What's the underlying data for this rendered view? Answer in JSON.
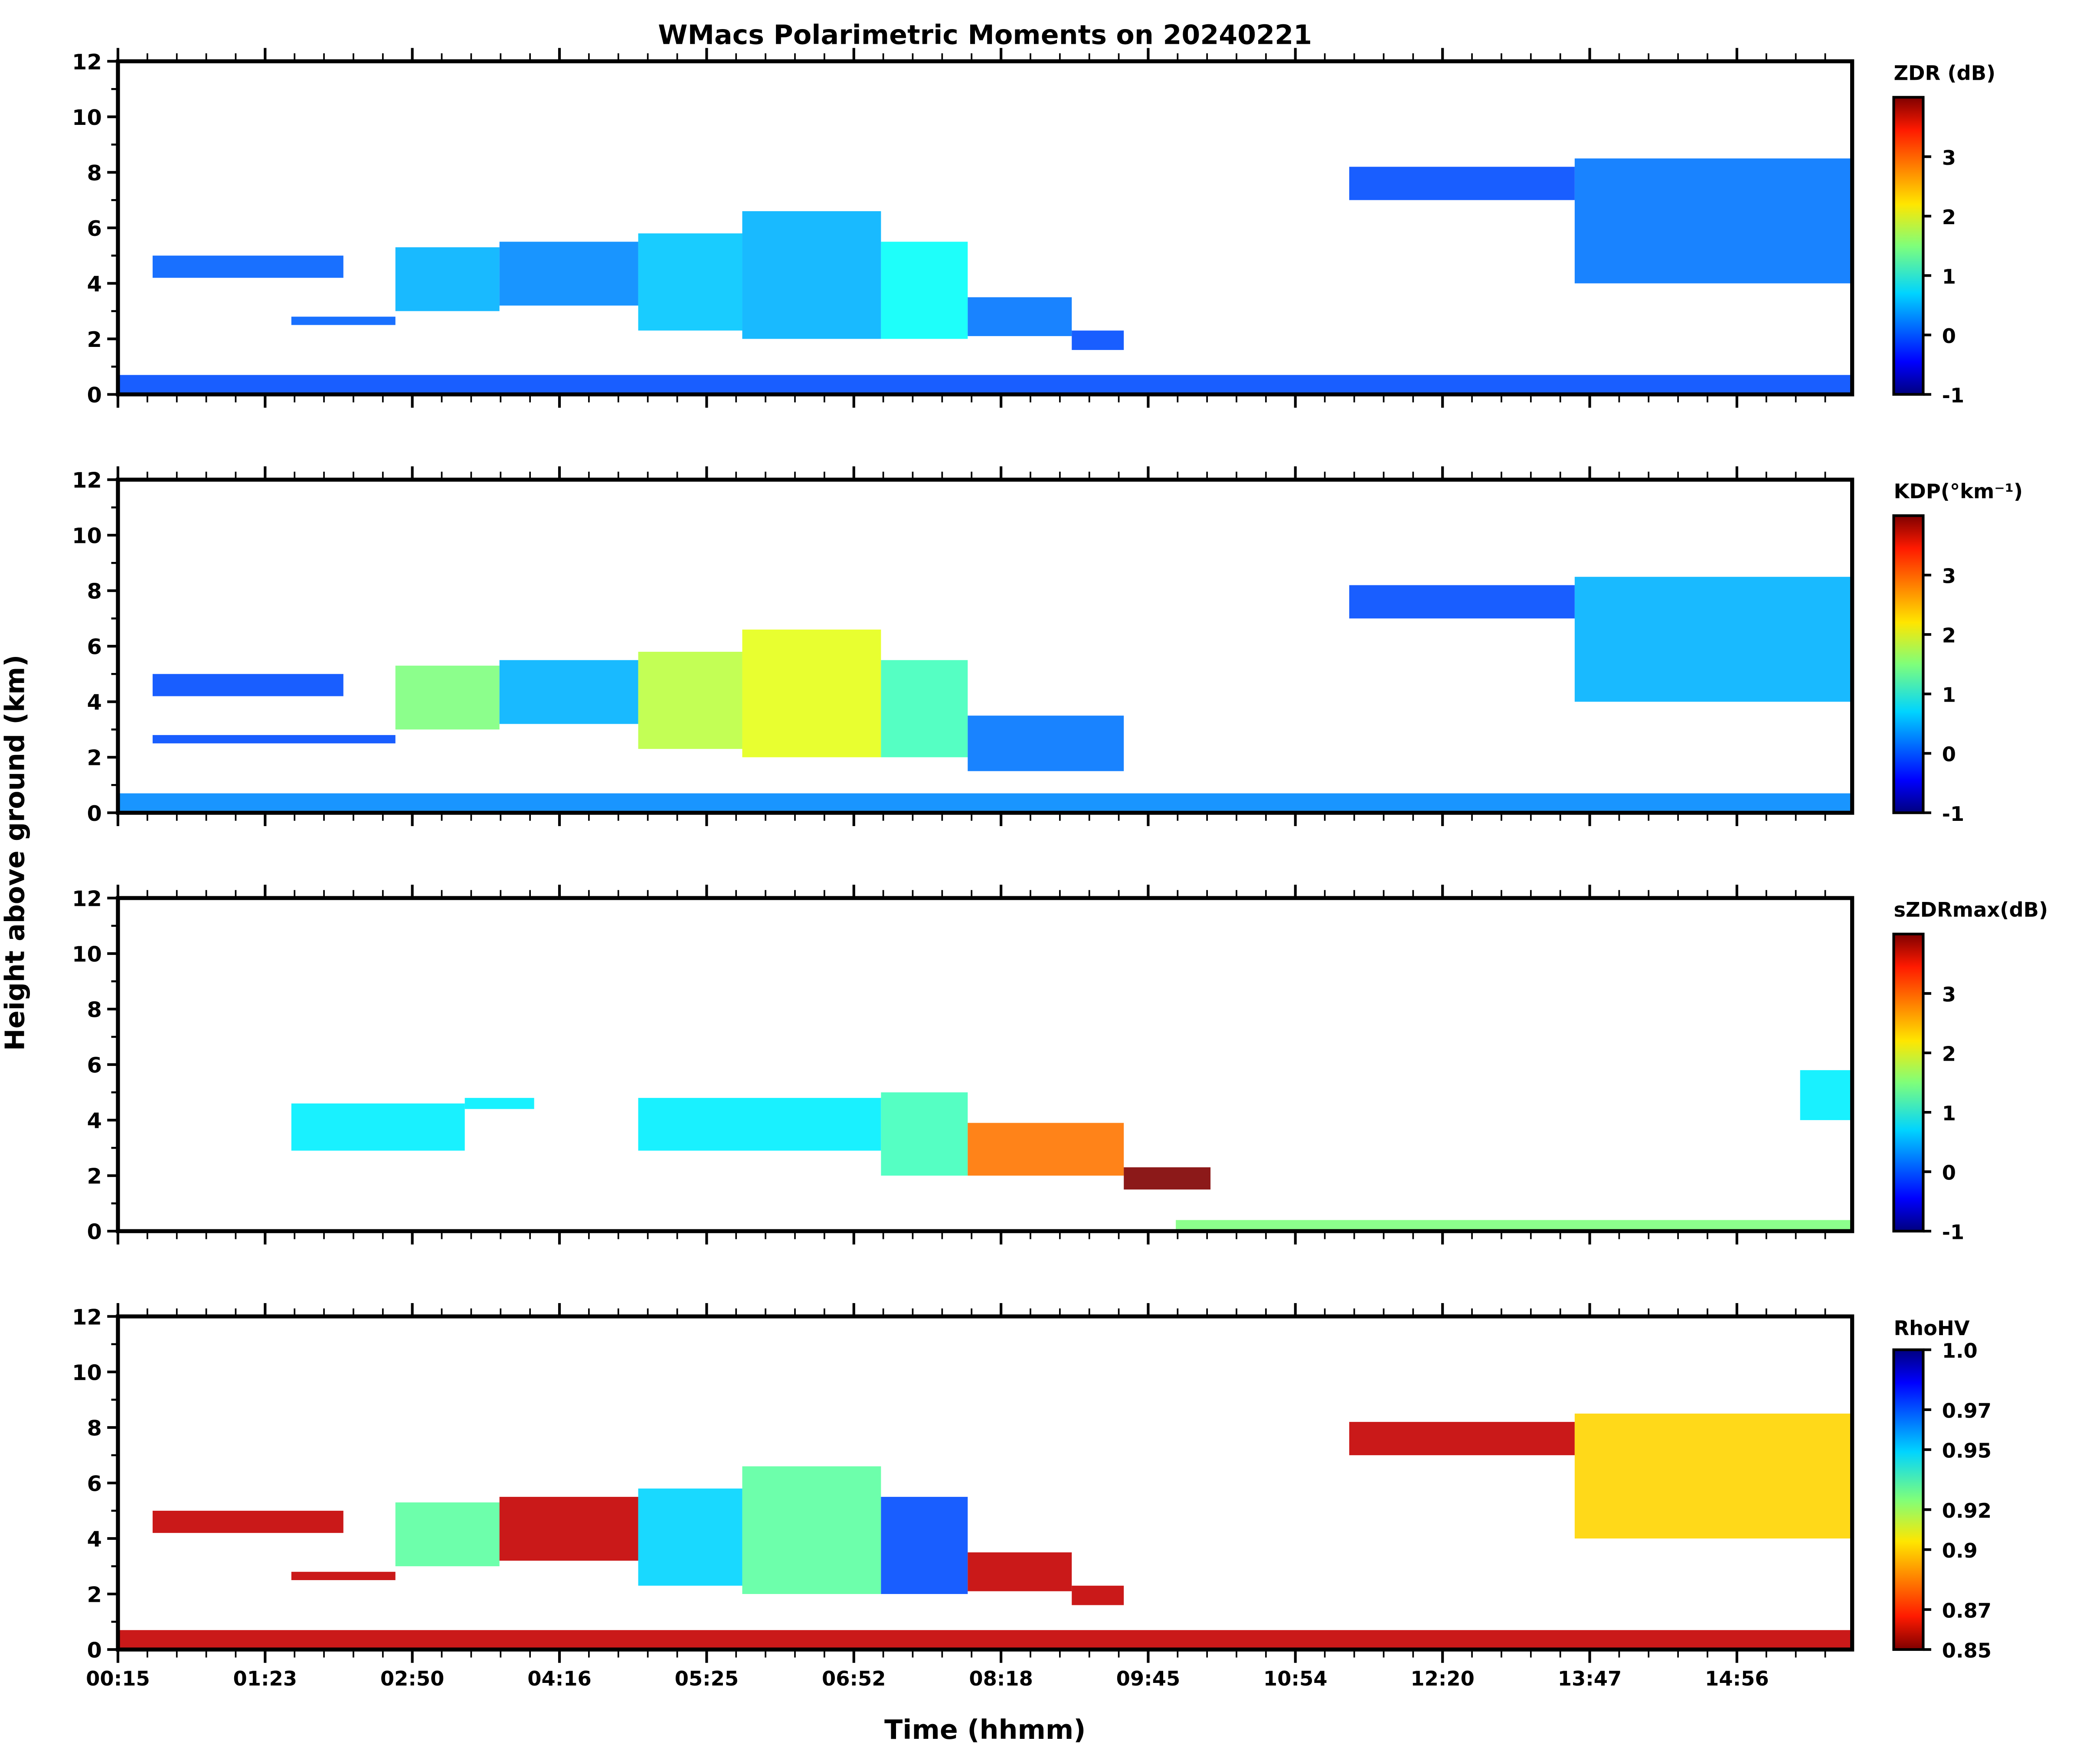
{
  "chart_data": {
    "type": "heatmap",
    "title": "WMacs Polarimetric Moments on 20240221",
    "xlabel": "Time (hhmm)",
    "ylabel": "Height above ground (km)",
    "x_ticks": [
      "00:15",
      "01:23",
      "02:50",
      "04:16",
      "05:25",
      "06:52",
      "08:18",
      "09:45",
      "10:54",
      "12:20",
      "13:47",
      "14:56"
    ],
    "y_ticks": [
      0,
      2,
      4,
      6,
      8,
      10,
      12
    ],
    "ylim": [
      0,
      12
    ],
    "panels": [
      {
        "name": "ZDR",
        "colorbar_label": "ZDR (dB)",
        "colormap": "jet",
        "clim": [
          -1,
          4
        ],
        "colorbar_ticks": [
          "3",
          "2",
          "1",
          "0",
          "-1"
        ],
        "colorbar_tick_values": [
          3,
          2,
          1,
          0,
          -1
        ],
        "dominant_color": "#1f6fff",
        "echoes": [
          {
            "x0": 0.02,
            "x1": 0.13,
            "y0": 4.2,
            "y1": 5.0,
            "v": 0.1
          },
          {
            "x0": 0.1,
            "x1": 0.16,
            "y0": 2.5,
            "y1": 2.8,
            "v": 0.1
          },
          {
            "x0": 0.16,
            "x1": 0.22,
            "y0": 3.0,
            "y1": 5.3,
            "v": 0.5
          },
          {
            "x0": 0.22,
            "x1": 0.3,
            "y0": 3.2,
            "y1": 5.5,
            "v": 0.3
          },
          {
            "x0": 0.3,
            "x1": 0.36,
            "y0": 2.3,
            "y1": 5.8,
            "v": 0.6
          },
          {
            "x0": 0.36,
            "x1": 0.44,
            "y0": 2.0,
            "y1": 6.6,
            "v": 0.5
          },
          {
            "x0": 0.44,
            "x1": 0.49,
            "y0": 2.0,
            "y1": 5.5,
            "v": 0.9
          },
          {
            "x0": 0.49,
            "x1": 0.55,
            "y0": 2.1,
            "y1": 3.5,
            "v": 0.2
          },
          {
            "x0": 0.55,
            "x1": 0.58,
            "y0": 1.6,
            "y1": 2.3,
            "v": 0.0
          },
          {
            "x0": 0.71,
            "x1": 0.84,
            "y0": 7.0,
            "y1": 8.2,
            "v": 0.0
          },
          {
            "x0": 0.84,
            "x1": 1.0,
            "y0": 4.0,
            "y1": 8.5,
            "v": 0.2
          },
          {
            "x0": 0.0,
            "x1": 1.0,
            "y0": 0.0,
            "y1": 0.7,
            "v": 0.0
          }
        ]
      },
      {
        "name": "KDP",
        "colorbar_label": "KDP(°km⁻¹)",
        "colormap": "jet",
        "clim": [
          -1,
          4
        ],
        "colorbar_ticks": [
          "3",
          "2",
          "1",
          "0",
          "-1"
        ],
        "colorbar_tick_values": [
          3,
          2,
          1,
          0,
          -1
        ],
        "dominant_color": "#1f6fff",
        "echoes": [
          {
            "x0": 0.02,
            "x1": 0.13,
            "y0": 4.2,
            "y1": 5.0,
            "v": 0.0
          },
          {
            "x0": 0.02,
            "x1": 0.16,
            "y0": 2.5,
            "y1": 2.8,
            "v": 0.0
          },
          {
            "x0": 0.16,
            "x1": 0.22,
            "y0": 3.0,
            "y1": 5.3,
            "v": 1.5
          },
          {
            "x0": 0.22,
            "x1": 0.3,
            "y0": 3.2,
            "y1": 5.5,
            "v": 0.5
          },
          {
            "x0": 0.3,
            "x1": 0.36,
            "y0": 2.3,
            "y1": 5.8,
            "v": 1.8
          },
          {
            "x0": 0.36,
            "x1": 0.44,
            "y0": 2.0,
            "y1": 6.6,
            "v": 2.0
          },
          {
            "x0": 0.44,
            "x1": 0.49,
            "y0": 2.0,
            "y1": 5.5,
            "v": 1.2
          },
          {
            "x0": 0.49,
            "x1": 0.58,
            "y0": 1.5,
            "y1": 3.5,
            "v": 0.2
          },
          {
            "x0": 0.71,
            "x1": 0.84,
            "y0": 7.0,
            "y1": 8.2,
            "v": 0.0
          },
          {
            "x0": 0.84,
            "x1": 1.0,
            "y0": 4.0,
            "y1": 8.5,
            "v": 0.5
          },
          {
            "x0": 0.0,
            "x1": 1.0,
            "y0": 0.0,
            "y1": 0.7,
            "v": 0.3
          }
        ]
      },
      {
        "name": "sZDRmax",
        "colorbar_label": "sZDRmax(dB)",
        "colormap": "jet",
        "clim": [
          -1,
          4
        ],
        "colorbar_ticks": [
          "3",
          "2",
          "1",
          "0",
          "-1"
        ],
        "colorbar_tick_values": [
          3,
          2,
          1,
          0,
          -1
        ],
        "dominant_color": "#3fd0ff",
        "echoes": [
          {
            "x0": 0.1,
            "x1": 0.2,
            "y0": 2.9,
            "y1": 4.6,
            "v": 0.8
          },
          {
            "x0": 0.2,
            "x1": 0.24,
            "y0": 4.4,
            "y1": 4.8,
            "v": 0.8
          },
          {
            "x0": 0.3,
            "x1": 0.44,
            "y0": 2.9,
            "y1": 4.8,
            "v": 0.8
          },
          {
            "x0": 0.44,
            "x1": 0.49,
            "y0": 2.0,
            "y1": 5.0,
            "v": 1.2
          },
          {
            "x0": 0.49,
            "x1": 0.58,
            "y0": 2.0,
            "y1": 3.9,
            "v": 2.8
          },
          {
            "x0": 0.58,
            "x1": 0.63,
            "y0": 1.5,
            "y1": 2.3,
            "v": 4.0
          },
          {
            "x0": 0.97,
            "x1": 1.0,
            "y0": 4.0,
            "y1": 5.8,
            "v": 0.8
          },
          {
            "x0": 0.61,
            "x1": 1.0,
            "y0": 0.0,
            "y1": 0.4,
            "v": 1.5
          }
        ]
      },
      {
        "name": "RhoHV",
        "colorbar_label": "RhoHV",
        "colormap": "jet_r",
        "clim": [
          0.85,
          1.0
        ],
        "colorbar_ticks": [
          "1.0",
          "0.97",
          "0.95",
          "0.92",
          "0.9",
          "0.87",
          "0.85"
        ],
        "colorbar_tick_values": [
          1.0,
          0.97,
          0.95,
          0.92,
          0.9,
          0.87,
          0.85
        ],
        "dominant_color": "#8b0000",
        "echoes": [
          {
            "x0": 0.02,
            "x1": 0.13,
            "y0": 4.2,
            "y1": 5.0,
            "v": 0.86
          },
          {
            "x0": 0.1,
            "x1": 0.16,
            "y0": 2.5,
            "y1": 2.8,
            "v": 0.86
          },
          {
            "x0": 0.16,
            "x1": 0.22,
            "y0": 3.0,
            "y1": 5.3,
            "v": 0.93
          },
          {
            "x0": 0.22,
            "x1": 0.3,
            "y0": 3.2,
            "y1": 5.5,
            "v": 0.86
          },
          {
            "x0": 0.3,
            "x1": 0.36,
            "y0": 2.3,
            "y1": 5.8,
            "v": 0.95
          },
          {
            "x0": 0.36,
            "x1": 0.44,
            "y0": 2.0,
            "y1": 6.6,
            "v": 0.93
          },
          {
            "x0": 0.44,
            "x1": 0.49,
            "y0": 2.0,
            "y1": 5.5,
            "v": 0.97
          },
          {
            "x0": 0.49,
            "x1": 0.55,
            "y0": 2.1,
            "y1": 3.5,
            "v": 0.86
          },
          {
            "x0": 0.55,
            "x1": 0.58,
            "y0": 1.6,
            "y1": 2.3,
            "v": 0.86
          },
          {
            "x0": 0.71,
            "x1": 0.84,
            "y0": 7.0,
            "y1": 8.2,
            "v": 0.86
          },
          {
            "x0": 0.84,
            "x1": 1.0,
            "y0": 4.0,
            "y1": 8.5,
            "v": 0.9
          },
          {
            "x0": 0.0,
            "x1": 1.0,
            "y0": 0.0,
            "y1": 0.7,
            "v": 0.86
          }
        ]
      }
    ]
  }
}
